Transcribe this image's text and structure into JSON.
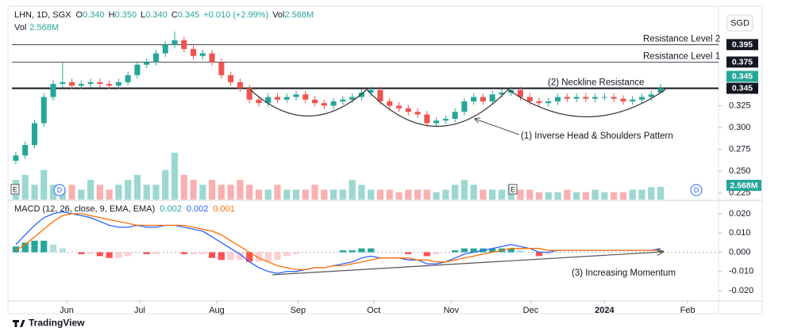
{
  "header": {
    "symbol": "LHN, 1D, SGX",
    "ohlc": [
      {
        "key": "O",
        "value": "0.340"
      },
      {
        "key": "H",
        "value": "0.350"
      },
      {
        "key": "L",
        "value": "0.340"
      },
      {
        "key": "C",
        "value": "0.345"
      }
    ],
    "change": "+0.010 (+2.99%)",
    "vol_key": "Vol",
    "vol_value": "2.568M",
    "vol_line_key": "Vol",
    "vol_line_value": "2.568M",
    "currency": "SGD",
    "markers": [
      "E",
      "D",
      "E",
      "D"
    ],
    "brand": "TradingView"
  },
  "chart_data": {
    "type": "candlestick",
    "open": [
      0.262,
      0.268,
      0.28,
      0.305,
      0.335,
      0.35,
      0.352,
      0.348,
      0.35,
      0.352,
      0.35,
      0.348,
      0.352,
      0.36,
      0.372,
      0.375,
      0.385,
      0.395,
      0.4,
      0.39,
      0.382,
      0.385,
      0.375,
      0.36,
      0.352,
      0.345,
      0.332,
      0.328,
      0.335,
      0.332,
      0.335,
      0.338,
      0.332,
      0.328,
      0.325,
      0.33,
      0.332,
      0.335,
      0.34,
      0.343,
      0.33,
      0.325,
      0.322,
      0.318,
      0.315,
      0.305,
      0.308,
      0.31,
      0.318,
      0.33,
      0.335,
      0.33,
      0.338,
      0.34,
      0.343,
      0.335,
      0.33,
      0.328,
      0.33,
      0.335,
      0.333,
      0.335,
      0.333,
      0.335,
      0.335,
      0.333,
      0.33,
      0.332,
      0.335,
      0.34
    ],
    "high": [
      0.272,
      0.284,
      0.309,
      0.339,
      0.354,
      0.375,
      0.356,
      0.354,
      0.356,
      0.356,
      0.354,
      0.356,
      0.364,
      0.376,
      0.379,
      0.389,
      0.399,
      0.41,
      0.404,
      0.394,
      0.389,
      0.389,
      0.379,
      0.364,
      0.356,
      0.349,
      0.336,
      0.339,
      0.339,
      0.339,
      0.342,
      0.342,
      0.336,
      0.332,
      0.334,
      0.336,
      0.339,
      0.344,
      0.347,
      0.347,
      0.334,
      0.329,
      0.326,
      0.322,
      0.319,
      0.312,
      0.314,
      0.322,
      0.334,
      0.339,
      0.339,
      0.342,
      0.344,
      0.347,
      0.347,
      0.339,
      0.334,
      0.334,
      0.339,
      0.339,
      0.339,
      0.339,
      0.339,
      0.339,
      0.339,
      0.337,
      0.336,
      0.339,
      0.342,
      0.35
    ],
    "low": [
      0.258,
      0.264,
      0.276,
      0.301,
      0.331,
      0.346,
      0.344,
      0.344,
      0.346,
      0.346,
      0.344,
      0.344,
      0.348,
      0.356,
      0.368,
      0.371,
      0.381,
      0.391,
      0.386,
      0.378,
      0.378,
      0.371,
      0.356,
      0.348,
      0.341,
      0.328,
      0.324,
      0.324,
      0.328,
      0.328,
      0.331,
      0.328,
      0.324,
      0.321,
      0.321,
      0.326,
      0.328,
      0.331,
      0.336,
      0.326,
      0.321,
      0.318,
      0.314,
      0.311,
      0.301,
      0.301,
      0.304,
      0.306,
      0.314,
      0.326,
      0.326,
      0.326,
      0.334,
      0.336,
      0.331,
      0.326,
      0.324,
      0.324,
      0.326,
      0.329,
      0.329,
      0.329,
      0.329,
      0.331,
      0.329,
      0.326,
      0.326,
      0.328,
      0.331,
      0.34
    ],
    "close": [
      0.268,
      0.28,
      0.305,
      0.335,
      0.35,
      0.352,
      0.348,
      0.35,
      0.352,
      0.35,
      0.348,
      0.352,
      0.36,
      0.372,
      0.375,
      0.385,
      0.395,
      0.4,
      0.39,
      0.382,
      0.385,
      0.375,
      0.36,
      0.352,
      0.345,
      0.332,
      0.328,
      0.335,
      0.332,
      0.335,
      0.338,
      0.332,
      0.328,
      0.325,
      0.33,
      0.332,
      0.335,
      0.34,
      0.343,
      0.33,
      0.325,
      0.322,
      0.318,
      0.315,
      0.305,
      0.308,
      0.31,
      0.318,
      0.33,
      0.335,
      0.33,
      0.338,
      0.34,
      0.343,
      0.335,
      0.33,
      0.328,
      0.33,
      0.335,
      0.333,
      0.335,
      0.333,
      0.335,
      0.335,
      0.333,
      0.33,
      0.332,
      0.335,
      0.338,
      0.345
    ],
    "volume": [
      4,
      5,
      3,
      6,
      3,
      2,
      3,
      2,
      4,
      3,
      2,
      3,
      4,
      5,
      3,
      3,
      6,
      9.5,
      5,
      4,
      3,
      4,
      3,
      3,
      4,
      3,
      2,
      2,
      3,
      2,
      2,
      2,
      3,
      2,
      2,
      2,
      4,
      3,
      2,
      2,
      2,
      1.5,
      2,
      2,
      2,
      1.5,
      2,
      3,
      4,
      3,
      2,
      2,
      2,
      3,
      2,
      2,
      1.5,
      1.5,
      1.5,
      2,
      1.5,
      1.5,
      2,
      1.5,
      1.5,
      1.5,
      2,
      2,
      2.5,
      2.568
    ],
    "volume_lim": [
      0,
      38
    ],
    "volume_label": "2.568M",
    "up_color": "#26a69a",
    "down_color": "#ef5350",
    "xlim": [
      -0.42,
      75.2
    ],
    "xticks": [
      {
        "value": 5.44,
        "label": "Jun"
      },
      {
        "value": 13.25,
        "label": "Jul"
      },
      {
        "value": 21.5,
        "label": "Aug"
      },
      {
        "value": 30.2,
        "label": "Sep"
      },
      {
        "value": 38.3,
        "label": "Oct"
      },
      {
        "value": 46.6,
        "label": "Nov"
      },
      {
        "value": 55.1,
        "label": "Dec"
      },
      {
        "value": 63,
        "label": "2024"
      },
      {
        "value": 71.9,
        "label": "Feb"
      }
    ],
    "ylim": [
      0.2175,
      0.4325
    ],
    "yticks": [
      0.325,
      {
        "value": 0.3,
        "label": "0.300"
      },
      0.275,
      {
        "value": 0.25,
        "label": "0.250"
      },
      0.225
    ],
    "levels": [
      {
        "name": "Resistance Level 2",
        "value": 0.395
      },
      {
        "name": "Resistance Level 1",
        "value": 0.375
      },
      {
        "name": "(2) Neckline Resistance",
        "value": 0.345
      }
    ],
    "annotations": [
      "(1) Inverse Head & Shoulders Pattern",
      "(3) Increasing Momentum"
    ],
    "macd_title": "MACD (12, 26, close, 9, EMA, EMA)",
    "macd_legend": [
      "0.002",
      "0.002",
      "0.001"
    ],
    "macd_color": "#2962ff",
    "signal_color": "#ff6d00",
    "macd": [
      0.004,
      0.009,
      0.014,
      0.018,
      0.02,
      0.021,
      0.02,
      0.019,
      0.018,
      0.016,
      0.014,
      0.013,
      0.013,
      0.014,
      0.013,
      0.013,
      0.014,
      0.014,
      0.013,
      0.012,
      0.011,
      0.008,
      0.005,
      0.002,
      -0.001,
      -0.005,
      -0.008,
      -0.01,
      -0.011,
      -0.01,
      -0.01,
      -0.009,
      -0.008,
      -0.008,
      -0.007,
      -0.006,
      -0.005,
      -0.003,
      -0.002,
      -0.003,
      -0.003,
      -0.003,
      -0.004,
      -0.004,
      -0.006,
      -0.006,
      -0.005,
      -0.003,
      -0.001,
      0,
      0.001,
      0.002,
      0.003,
      0.004,
      0.003,
      0.002,
      0,
      0,
      0.001,
      0.001,
      0.001,
      0.001,
      0.001,
      0.001,
      0.001,
      0.001,
      0.001,
      0.001,
      0.001,
      0.002
    ],
    "signal": [
      0.001,
      0.004,
      0.008,
      0.012,
      0.016,
      0.019,
      0.02,
      0.02,
      0.019,
      0.018,
      0.017,
      0.016,
      0.015,
      0.014,
      0.014,
      0.014,
      0.014,
      0.014,
      0.014,
      0.013,
      0.012,
      0.011,
      0.009,
      0.006,
      0.003,
      0,
      -0.003,
      -0.005,
      -0.007,
      -0.008,
      -0.009,
      -0.009,
      -0.008,
      -0.008,
      -0.007,
      -0.007,
      -0.006,
      -0.005,
      -0.004,
      -0.003,
      -0.003,
      -0.003,
      -0.003,
      -0.004,
      -0.004,
      -0.005,
      -0.005,
      -0.004,
      -0.003,
      -0.002,
      -0.001,
      0,
      0.001,
      0.002,
      0.002,
      0.002,
      0.002,
      0.001,
      0.001,
      0.001,
      0.001,
      0.001,
      0.001,
      0.001,
      0.001,
      0.001,
      0.001,
      0.001,
      0.001,
      0.001
    ],
    "histogram": [
      0.003,
      0.005,
      0.006,
      0.006,
      0.004,
      0.002,
      0,
      -0.001,
      -0.001,
      -0.002,
      -0.003,
      -0.003,
      -0.002,
      0,
      -0.001,
      -0.001,
      0,
      0,
      -0.001,
      -0.001,
      -0.001,
      -0.003,
      -0.004,
      -0.004,
      -0.004,
      -0.005,
      -0.005,
      -0.005,
      -0.004,
      -0.002,
      -0.001,
      0,
      0,
      0,
      0,
      0.001,
      0.001,
      0.002,
      0.002,
      0,
      0,
      0,
      -0.001,
      0,
      -0.002,
      -0.001,
      0,
      0.001,
      0.002,
      0.002,
      0.002,
      0.002,
      0.002,
      0.002,
      0.001,
      0,
      -0.002,
      -0.001,
      0,
      0,
      0,
      0,
      0,
      0,
      0,
      0,
      0,
      0,
      0,
      0.001
    ],
    "macd_ylim": [
      -0.0253,
      0.0249
    ],
    "macd_yticks": [
      {
        "value": 0.02,
        "label": "0.020"
      },
      {
        "value": 0.01,
        "label": "0.010"
      },
      {
        "value": 0,
        "label": "0.000"
      },
      {
        "value": -0.01,
        "label": "-0.010"
      },
      {
        "value": -0.02,
        "label": "-0.020"
      }
    ]
  }
}
